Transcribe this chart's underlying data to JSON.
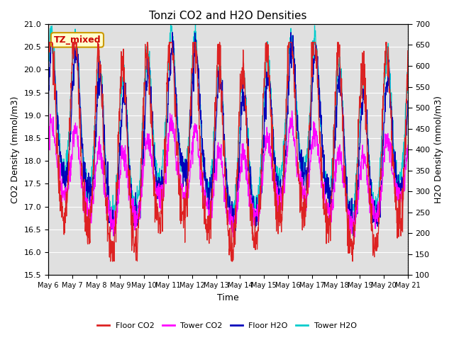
{
  "title": "Tonzi CO2 and H2O Densities",
  "xlabel": "Time",
  "ylabel_left": "CO2 Density (mmol/m3)",
  "ylabel_right": "H2O Density (mmol/m3)",
  "co2_ylim": [
    15.5,
    21.0
  ],
  "h2o_ylim": [
    100,
    700
  ],
  "annotation_text": "TZ_mixed",
  "annotation_color": "#cc0000",
  "annotation_bg": "#ffffcc",
  "annotation_border": "#cc9900",
  "x_tick_labels": [
    "May 6",
    "May 7",
    "May 8",
    "May 9",
    "May 10",
    "May 11",
    "May 12",
    "May 13",
    "May 14",
    "May 15",
    "May 16",
    "May 17",
    "May 18",
    "May 19",
    "May 20",
    "May 21"
  ],
  "colors": {
    "floor_co2": "#dd2222",
    "tower_co2": "#ff00ff",
    "floor_h2o": "#0000bb",
    "tower_h2o": "#00cccc"
  },
  "legend_labels": [
    "Floor CO2",
    "Tower CO2",
    "Floor H2O",
    "Tower H2O"
  ],
  "fig_bg_color": "#ffffff",
  "plot_bg_color": "#e0e0e0",
  "n_days": 15,
  "points_per_day": 96,
  "co2_ticks": [
    15.5,
    16.0,
    16.5,
    17.0,
    17.5,
    18.0,
    18.5,
    19.0,
    19.5,
    20.0,
    20.5,
    21.0
  ],
  "h2o_ticks": [
    100,
    150,
    200,
    250,
    300,
    350,
    400,
    450,
    500,
    550,
    600,
    650,
    700
  ]
}
